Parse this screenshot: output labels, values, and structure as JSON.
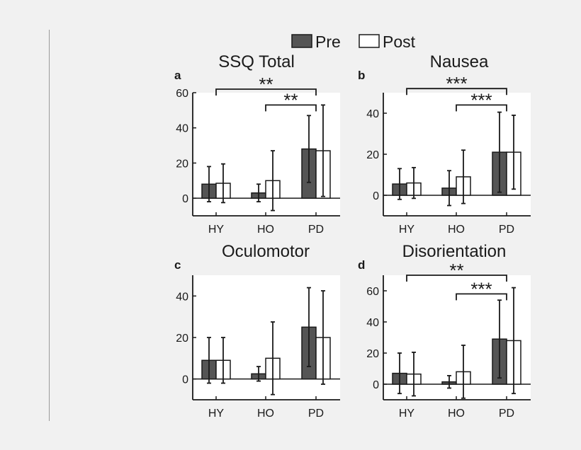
{
  "legend": {
    "pre": "Pre",
    "post": "Post"
  },
  "colors": {
    "pre": "#555555",
    "post": "#ffffff",
    "panel": "#ffffff",
    "ink": "#1a1a1a"
  },
  "chart_data": [
    {
      "type": "bar",
      "letter": "a",
      "title": "SSQ Total",
      "categories": [
        "HY",
        "HO",
        "PD"
      ],
      "series": [
        {
          "name": "Pre",
          "values": [
            8,
            3,
            28
          ],
          "err": [
            10,
            5,
            19
          ]
        },
        {
          "name": "Post",
          "values": [
            8.5,
            10,
            27
          ],
          "err": [
            11,
            17,
            26
          ]
        }
      ],
      "ylim": [
        -10,
        60
      ],
      "yticks": [
        0,
        20,
        40,
        60
      ],
      "significance": [
        {
          "from": 0,
          "to": 2,
          "label": "**",
          "y": 62
        },
        {
          "from": 1,
          "to": 2,
          "label": "**",
          "y": 53
        }
      ]
    },
    {
      "type": "bar",
      "letter": "b",
      "title": "Nausea",
      "categories": [
        "HY",
        "HO",
        "PD"
      ],
      "series": [
        {
          "name": "Pre",
          "values": [
            5.5,
            3.5,
            21
          ],
          "err": [
            7.5,
            8.5,
            19.5
          ]
        },
        {
          "name": "Post",
          "values": [
            6,
            9,
            21
          ],
          "err": [
            7.5,
            13,
            18
          ]
        }
      ],
      "ylim": [
        -10,
        50
      ],
      "yticks": [
        0,
        20,
        40
      ],
      "significance": [
        {
          "from": 0,
          "to": 2,
          "label": "***",
          "y": 52
        },
        {
          "from": 1,
          "to": 2,
          "label": "***",
          "y": 44
        }
      ]
    },
    {
      "type": "bar",
      "letter": "c",
      "title": "Oculomotor",
      "categories": [
        "HY",
        "HO",
        "PD"
      ],
      "series": [
        {
          "name": "Pre",
          "values": [
            9,
            2.5,
            25
          ],
          "err": [
            11,
            3.5,
            19
          ]
        },
        {
          "name": "Post",
          "values": [
            9,
            10,
            20
          ],
          "err": [
            11,
            17.5,
            22.5
          ]
        }
      ],
      "ylim": [
        -10,
        50
      ],
      "yticks": [
        0,
        20,
        40
      ],
      "significance": []
    },
    {
      "type": "bar",
      "letter": "d",
      "title": "Disorientation",
      "categories": [
        "HY",
        "HO",
        "PD"
      ],
      "series": [
        {
          "name": "Pre",
          "values": [
            7,
            1.5,
            29
          ],
          "err": [
            13,
            4,
            25
          ]
        },
        {
          "name": "Post",
          "values": [
            6.5,
            8,
            28
          ],
          "err": [
            14,
            17,
            34
          ]
        }
      ],
      "ylim": [
        -10,
        70
      ],
      "yticks": [
        0,
        20,
        40,
        60
      ],
      "significance": [
        {
          "from": 0,
          "to": 2,
          "label": "**",
          "y": 70
        },
        {
          "from": 1,
          "to": 2,
          "label": "***",
          "y": 58
        }
      ]
    }
  ]
}
